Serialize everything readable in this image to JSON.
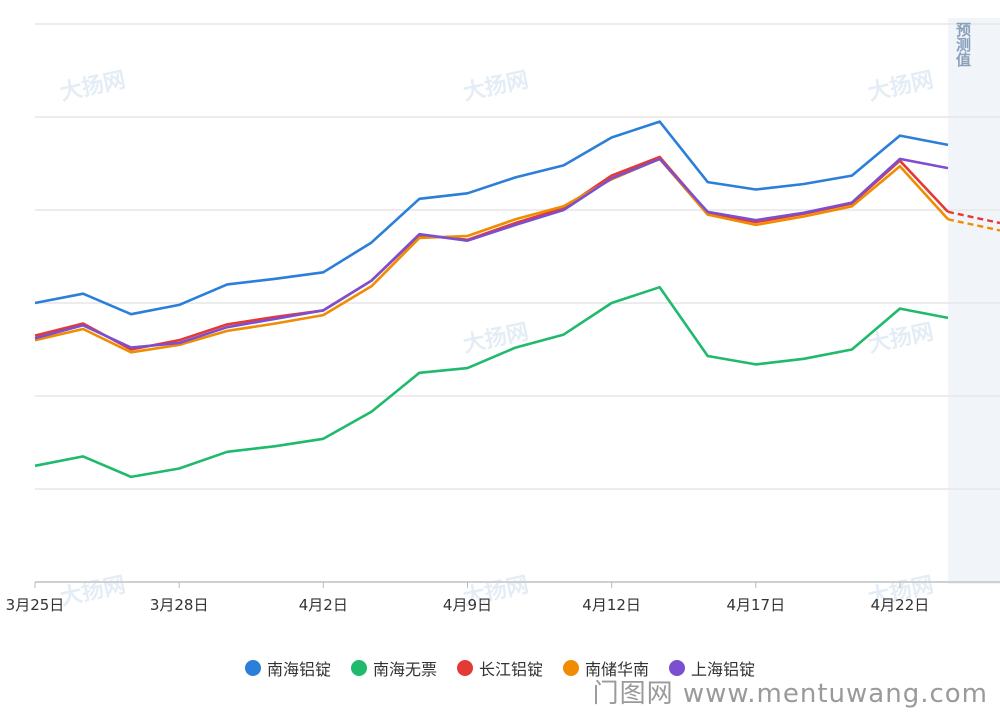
{
  "chart_data": {
    "type": "line",
    "categories": [
      "3月25日",
      "",
      "",
      "3月28日",
      "",
      "",
      "4月2日",
      "",
      "",
      "4月9日",
      "",
      "",
      "4月12日",
      "",
      "",
      "4月17日",
      "",
      "",
      "4月22日",
      ""
    ],
    "x_tick_indices": [
      0,
      3,
      6,
      9,
      12,
      15,
      18
    ],
    "ylim": [
      0,
      6
    ],
    "y_grid_count": 6,
    "grid": true,
    "legend_position": "bottom",
    "forecast_label": "预测值",
    "series": [
      {
        "name": "南海铝锭",
        "color": "#2b7fd9",
        "values": [
          3.0,
          3.1,
          2.88,
          2.98,
          3.2,
          3.26,
          3.33,
          3.65,
          4.12,
          4.18,
          4.35,
          4.48,
          4.78,
          4.95,
          4.3,
          4.22,
          4.28,
          4.37,
          4.8,
          4.7
        ],
        "forecast": []
      },
      {
        "name": "南海无票",
        "color": "#1fba6b",
        "values": [
          1.25,
          1.35,
          1.13,
          1.22,
          1.4,
          1.46,
          1.54,
          1.83,
          2.25,
          2.3,
          2.52,
          2.66,
          3.0,
          3.17,
          2.43,
          2.34,
          2.4,
          2.5,
          2.94,
          2.84
        ],
        "forecast": []
      },
      {
        "name": "长江铝锭",
        "color": "#e53935",
        "values": [
          2.65,
          2.78,
          2.5,
          2.6,
          2.77,
          2.85,
          2.92,
          3.24,
          3.73,
          3.68,
          3.86,
          4.02,
          4.37,
          4.57,
          3.97,
          3.87,
          3.96,
          4.07,
          4.53,
          3.98
        ],
        "forecast": [
          3.98,
          3.86
        ]
      },
      {
        "name": "南储华南",
        "color": "#f08c00",
        "values": [
          2.6,
          2.72,
          2.47,
          2.55,
          2.7,
          2.78,
          2.87,
          3.18,
          3.7,
          3.72,
          3.9,
          4.04,
          4.33,
          4.55,
          3.95,
          3.84,
          3.93,
          4.04,
          4.47,
          3.9
        ],
        "forecast": [
          3.9,
          3.78
        ]
      },
      {
        "name": "上海铝锭",
        "color": "#7b4fcf",
        "values": [
          2.62,
          2.76,
          2.52,
          2.57,
          2.74,
          2.83,
          2.92,
          3.24,
          3.74,
          3.67,
          3.84,
          4.0,
          4.34,
          4.55,
          3.98,
          3.89,
          3.97,
          4.08,
          4.55,
          4.45
        ],
        "forecast": []
      }
    ]
  },
  "watermarks": [
    "大扬网",
    "大扬网",
    "大扬网",
    "大扬网",
    "大扬网",
    "大扬网",
    "大扬网",
    "大扬网"
  ],
  "site_watermark": "门图网 www.mentuwang.com"
}
